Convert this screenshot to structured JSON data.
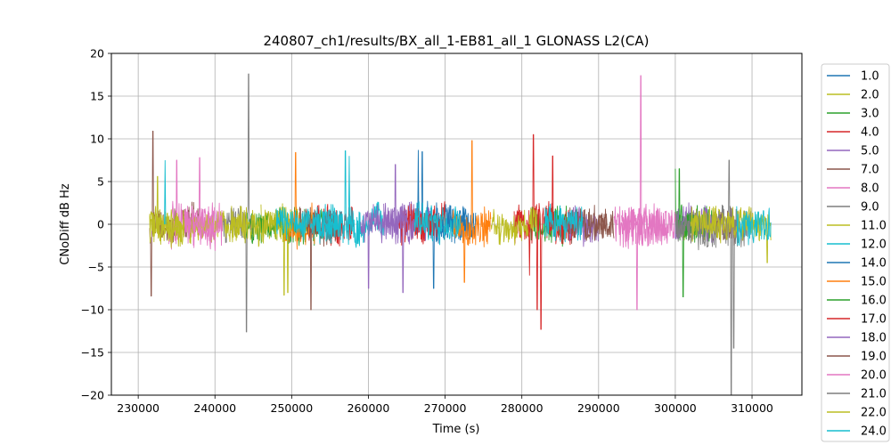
{
  "chart_data": {
    "type": "line",
    "title": "240807_ch1/results/BX_all_1-EB81_all_1 GLONASS L2(CA)",
    "xlabel": "Time (s)",
    "ylabel": "CNoDiff dB Hz",
    "xlim": [
      226500,
      316500
    ],
    "ylim": [
      -20,
      20
    ],
    "xticks": [
      230000,
      240000,
      250000,
      260000,
      270000,
      280000,
      290000,
      300000,
      310000
    ],
    "xtick_labels": [
      "230000",
      "240000",
      "250000",
      "260000",
      "270000",
      "280000",
      "290000",
      "300000",
      "310000"
    ],
    "yticks": [
      -20,
      -15,
      -10,
      -5,
      0,
      5,
      10,
      15,
      20
    ],
    "ytick_labels": [
      "−20",
      "−15",
      "−10",
      "−5",
      "0",
      "5",
      "10",
      "15",
      "20"
    ],
    "grid": true,
    "legend_position": "outside-right",
    "series": [
      {
        "name": "1.0",
        "color": "#1f77b4",
        "segments": [
          [
            266000,
            274000
          ]
        ],
        "amp": 2.2,
        "spikes": [
          [
            267000,
            8.5
          ],
          [
            268500,
            -7.5
          ]
        ]
      },
      {
        "name": "2.0",
        "color": "#bcbd22",
        "segments": [
          [
            246000,
            252000
          ],
          [
            300000,
            306000
          ]
        ],
        "amp": 2.0,
        "spikes": [
          [
            249500,
            -8.0
          ]
        ]
      },
      {
        "name": "3.0",
        "color": "#2ca02c",
        "segments": [
          [
            248000,
            254000
          ],
          [
            281000,
            286000
          ],
          [
            300000,
            305000
          ]
        ],
        "amp": 2.0,
        "spikes": [
          [
            301000,
            -8.5
          ],
          [
            300500,
            6.5
          ]
        ]
      },
      {
        "name": "4.0",
        "color": "#d62728",
        "segments": [
          [
            252000,
            258000
          ],
          [
            279000,
            284000
          ]
        ],
        "amp": 2.2,
        "spikes": [
          [
            281500,
            10.5
          ],
          [
            282500,
            -12.3
          ],
          [
            282000,
            -10.0
          ]
        ]
      },
      {
        "name": "5.0",
        "color": "#9467bd",
        "segments": [
          [
            262000,
            268000
          ],
          [
            300000,
            305000
          ]
        ],
        "amp": 2.2,
        "spikes": [
          [
            263500,
            7.0
          ],
          [
            264500,
            -8.0
          ]
        ]
      },
      {
        "name": "7.0",
        "color": "#8c564b",
        "segments": [
          [
            231500,
            238000
          ],
          [
            286000,
            292000
          ]
        ],
        "amp": 2.0,
        "spikes": [
          [
            231900,
            10.9
          ],
          [
            231700,
            -8.4
          ]
        ]
      },
      {
        "name": "8.0",
        "color": "#e377c2",
        "segments": [
          [
            234000,
            240000
          ],
          [
            293000,
            299000
          ]
        ],
        "amp": 2.5,
        "spikes": [
          [
            235000,
            7.5
          ],
          [
            295500,
            17.4
          ],
          [
            295000,
            -10.0
          ]
        ]
      },
      {
        "name": "9.0",
        "color": "#7f7f7f",
        "segments": [
          [
            241000,
            245000
          ]
        ],
        "amp": 2.0,
        "spikes": [
          [
            244400,
            17.6
          ],
          [
            244100,
            -12.6
          ]
        ]
      },
      {
        "name": "11.0",
        "color": "#bcbd22",
        "segments": [
          [
            231500,
            244000
          ],
          [
            276000,
            282000
          ]
        ],
        "amp": 1.8,
        "spikes": [
          [
            232500,
            5.6
          ]
        ]
      },
      {
        "name": "12.0",
        "color": "#17becf",
        "segments": [
          [
            254000,
            262000
          ]
        ],
        "amp": 2.0,
        "spikes": [
          [
            257000,
            8.6
          ]
        ]
      },
      {
        "name": "14.0",
        "color": "#1f77b4",
        "segments": [
          [
            268000,
            273000
          ]
        ],
        "amp": 2.0,
        "spikes": [
          [
            266500,
            8.7
          ]
        ]
      },
      {
        "name": "15.0",
        "color": "#ff7f0e",
        "segments": [
          [
            271000,
            276000
          ],
          [
            249000,
            253000
          ]
        ],
        "amp": 2.2,
        "spikes": [
          [
            273500,
            9.8
          ],
          [
            272500,
            -6.8
          ],
          [
            250500,
            8.4
          ]
        ]
      },
      {
        "name": "16.0",
        "color": "#2ca02c",
        "segments": [
          [
            244000,
            248000
          ],
          [
            300000,
            304000
          ]
        ],
        "amp": 1.8,
        "spikes": [
          [
            300000,
            6.5
          ]
        ]
      },
      {
        "name": "17.0",
        "color": "#d62728",
        "segments": [
          [
            264000,
            270000
          ],
          [
            283000,
            287000
          ]
        ],
        "amp": 2.0,
        "spikes": [
          [
            284000,
            8.0
          ],
          [
            281000,
            -6.0
          ]
        ]
      },
      {
        "name": "18.0",
        "color": "#9467bd",
        "segments": [
          [
            259000,
            266000
          ],
          [
            286000,
            290000
          ]
        ],
        "amp": 2.0,
        "spikes": [
          [
            260000,
            -7.5
          ]
        ]
      },
      {
        "name": "19.0",
        "color": "#8c564b",
        "segments": [
          [
            251000,
            256000
          ],
          [
            286000,
            291000
          ],
          [
            305000,
            308000
          ]
        ],
        "amp": 2.0,
        "spikes": [
          [
            252500,
            -10.0
          ]
        ]
      },
      {
        "name": "20.0",
        "color": "#e377c2",
        "segments": [
          [
            236000,
            241000
          ],
          [
            292000,
            300000
          ]
        ],
        "amp": 2.3,
        "spikes": [
          [
            238000,
            7.8
          ]
        ]
      },
      {
        "name": "21.0",
        "color": "#7f7f7f",
        "segments": [
          [
            300000,
            310000
          ]
        ],
        "amp": 2.2,
        "spikes": [
          [
            307300,
            -20.0
          ],
          [
            307600,
            -14.5
          ],
          [
            307000,
            7.5
          ]
        ]
      },
      {
        "name": "22.0",
        "color": "#bcbd22",
        "segments": [
          [
            231500,
            236000
          ],
          [
            242000,
            250000
          ],
          [
            302000,
            312500
          ]
        ],
        "amp": 2.0,
        "spikes": [
          [
            249000,
            -8.3
          ],
          [
            312000,
            -4.5
          ]
        ]
      },
      {
        "name": "24.0",
        "color": "#17becf",
        "segments": [
          [
            248000,
            256000
          ],
          [
            266000,
            272000
          ],
          [
            283000,
            288000
          ],
          [
            308000,
            312500
          ]
        ],
        "amp": 2.0,
        "spikes": [
          [
            233500,
            7.5
          ],
          [
            257500,
            8.0
          ]
        ]
      }
    ]
  }
}
